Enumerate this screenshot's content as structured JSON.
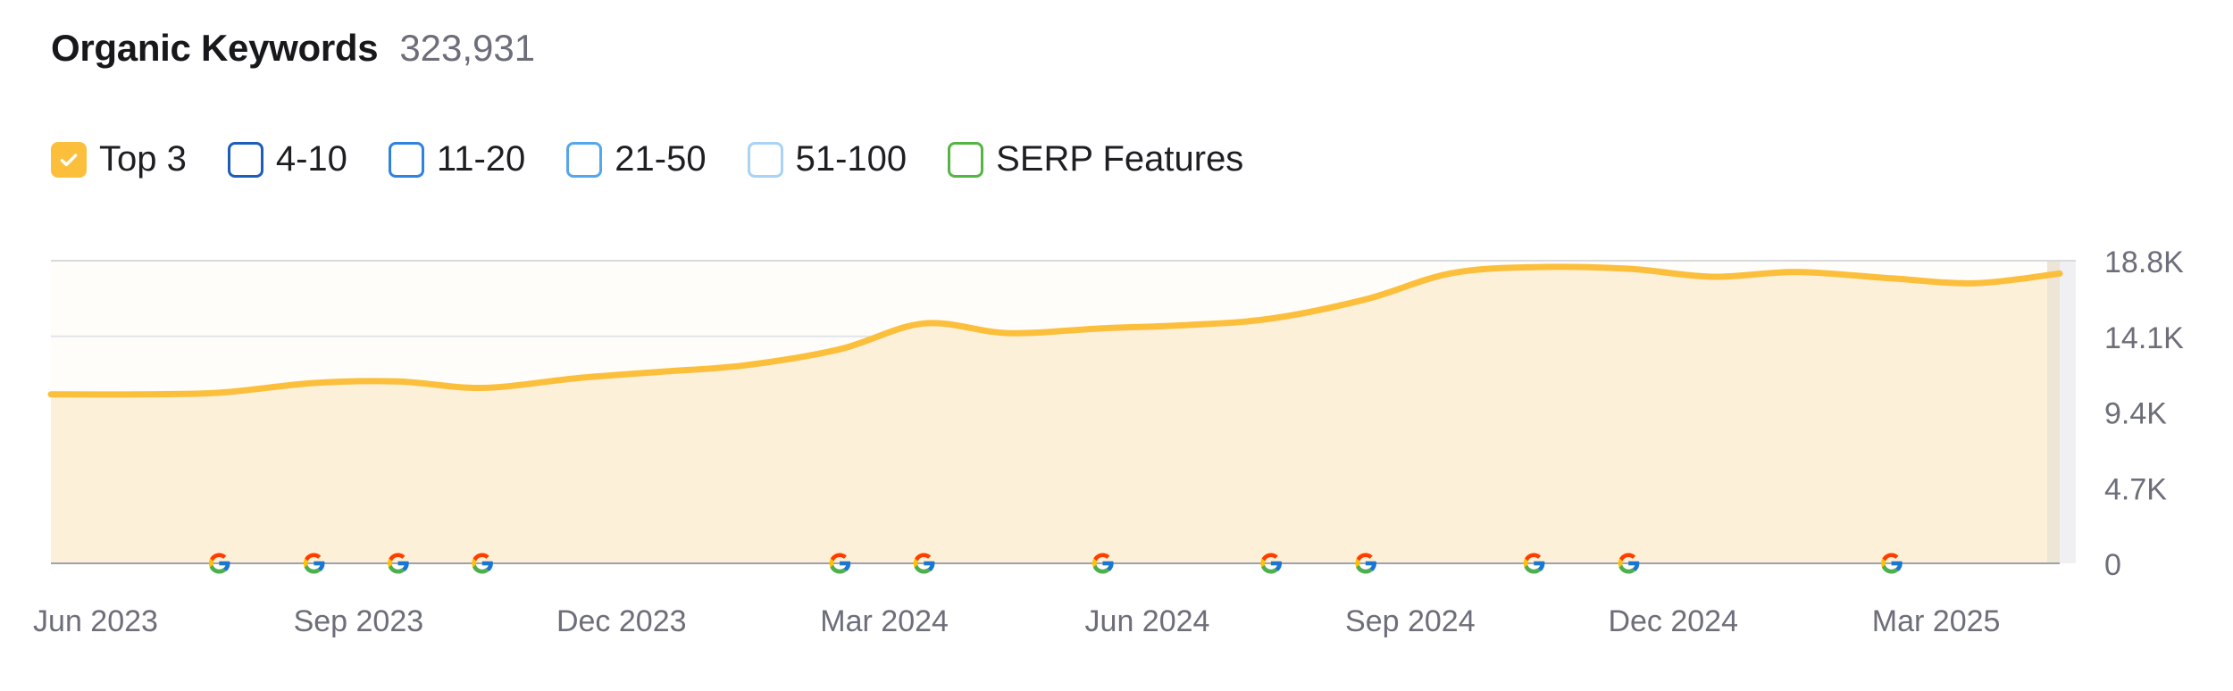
{
  "header": {
    "title": "Organic Keywords",
    "total": "323,931"
  },
  "legend": [
    {
      "label": "Top 3",
      "checked": true,
      "color": "#fbbf3c"
    },
    {
      "label": "4-10",
      "checked": false,
      "color": "#1c5dba"
    },
    {
      "label": "11-20",
      "checked": false,
      "color": "#2f82e0"
    },
    {
      "label": "21-50",
      "checked": false,
      "color": "#56a6ec"
    },
    {
      "label": "51-100",
      "checked": false,
      "color": "#a8d2f6"
    },
    {
      "label": "SERP Features",
      "checked": false,
      "color": "#55b543"
    }
  ],
  "chart_data": {
    "type": "area",
    "title": "Organic Keywords",
    "series": [
      {
        "name": "Top 3",
        "color": "#fbbf3c",
        "fill": "#fdf0d9",
        "x": [
          2023.42,
          2023.5,
          2023.58,
          2023.67,
          2023.75,
          2023.83,
          2023.92,
          2024.0,
          2024.08,
          2024.17,
          2024.25,
          2024.33,
          2024.42,
          2024.5,
          2024.58,
          2024.67,
          2024.75,
          2024.83,
          2024.92,
          2025.0,
          2025.08,
          2025.17,
          2025.25,
          2025.33
        ],
        "values": [
          10.5,
          10.5,
          10.6,
          11.2,
          11.3,
          10.9,
          11.5,
          11.9,
          12.3,
          13.3,
          14.9,
          14.3,
          14.6,
          14.8,
          15.2,
          16.4,
          18.0,
          18.4,
          18.3,
          17.8,
          18.1,
          17.7,
          17.4,
          18.0
        ]
      }
    ],
    "x_ticks": [
      {
        "value": 2023.42,
        "label": "Jun 2023"
      },
      {
        "value": 2023.67,
        "label": "Sep 2023"
      },
      {
        "value": 2023.92,
        "label": "Dec 2023"
      },
      {
        "value": 2024.17,
        "label": "Mar 2024"
      },
      {
        "value": 2024.42,
        "label": "Jun 2024"
      },
      {
        "value": 2024.67,
        "label": "Sep 2024"
      },
      {
        "value": 2024.92,
        "label": "Dec 2024"
      },
      {
        "value": 2025.17,
        "label": "Mar 2025"
      }
    ],
    "y_ticks": [
      {
        "value": 0,
        "label": "0"
      },
      {
        "value": 4.7,
        "label": "4.7K"
      },
      {
        "value": 9.4,
        "label": "9.4K"
      },
      {
        "value": 14.1,
        "label": "14.1K"
      },
      {
        "value": 18.8,
        "label": "18.8K"
      }
    ],
    "xlim": [
      2023.42,
      2025.33
    ],
    "ylim": [
      0,
      18.8
    ],
    "y_unit": "K",
    "grid": true,
    "google_update_markers": [
      2023.58,
      2023.67,
      2023.75,
      2023.83,
      2024.17,
      2024.25,
      2024.42,
      2024.58,
      2024.67,
      2024.83,
      2024.92,
      2025.17
    ]
  }
}
